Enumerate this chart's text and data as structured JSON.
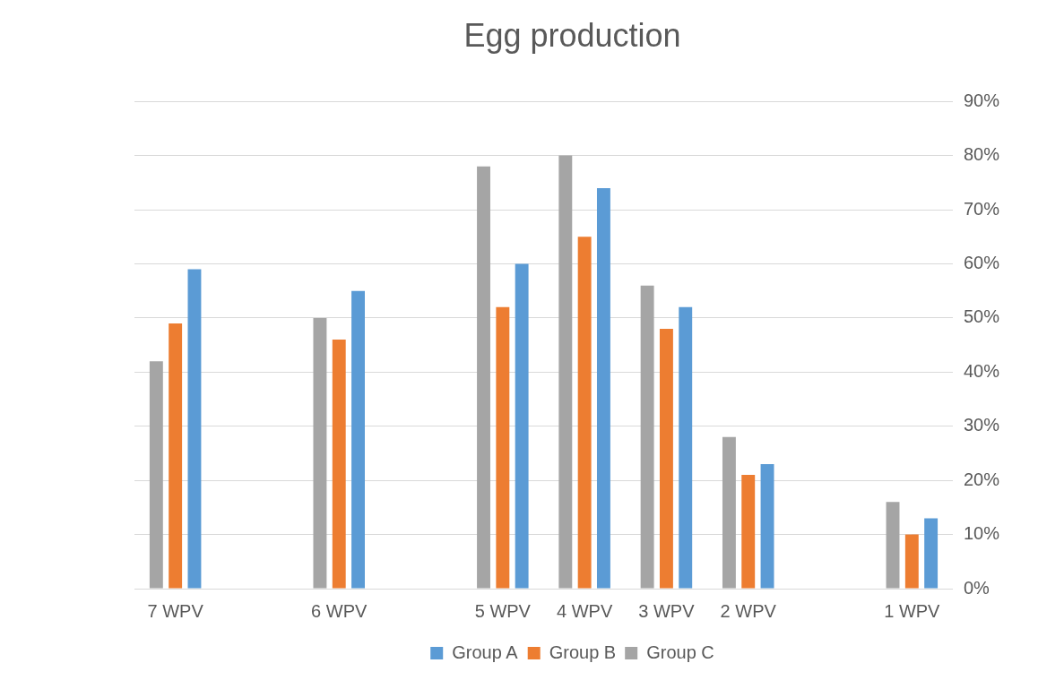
{
  "chart_data": {
    "type": "bar",
    "title": "Egg production",
    "categories": [
      "7 WPV",
      null,
      "6 WPV",
      null,
      "5 WPV",
      "4 WPV",
      "3 WPV",
      "2 WPV",
      null,
      "1 WPV"
    ],
    "series": [
      {
        "name": "Group A",
        "color": "#5b9bd5",
        "values": [
          59,
          null,
          55,
          null,
          60,
          74,
          52,
          23,
          null,
          13
        ]
      },
      {
        "name": "Group B",
        "color": "#ed7d31",
        "values": [
          49,
          null,
          46,
          null,
          52,
          65,
          48,
          21,
          null,
          10
        ]
      },
      {
        "name": "Group C",
        "color": "#a5a5a5",
        "values": [
          42,
          null,
          50,
          null,
          78,
          80,
          56,
          28,
          null,
          16
        ]
      }
    ],
    "ylim": [
      0,
      90
    ],
    "yticks": [
      {
        "value": 0,
        "label": "0%"
      },
      {
        "value": 10,
        "label": "10%"
      },
      {
        "value": 20,
        "label": "20%"
      },
      {
        "value": 30,
        "label": "30%"
      },
      {
        "value": 40,
        "label": "40%"
      },
      {
        "value": 50,
        "label": "50%"
      },
      {
        "value": 60,
        "label": "60%"
      },
      {
        "value": 70,
        "label": "70%"
      },
      {
        "value": 80,
        "label": "80%"
      },
      {
        "value": 90,
        "label": "90%"
      }
    ],
    "grid": "y",
    "legend": "bottom"
  }
}
